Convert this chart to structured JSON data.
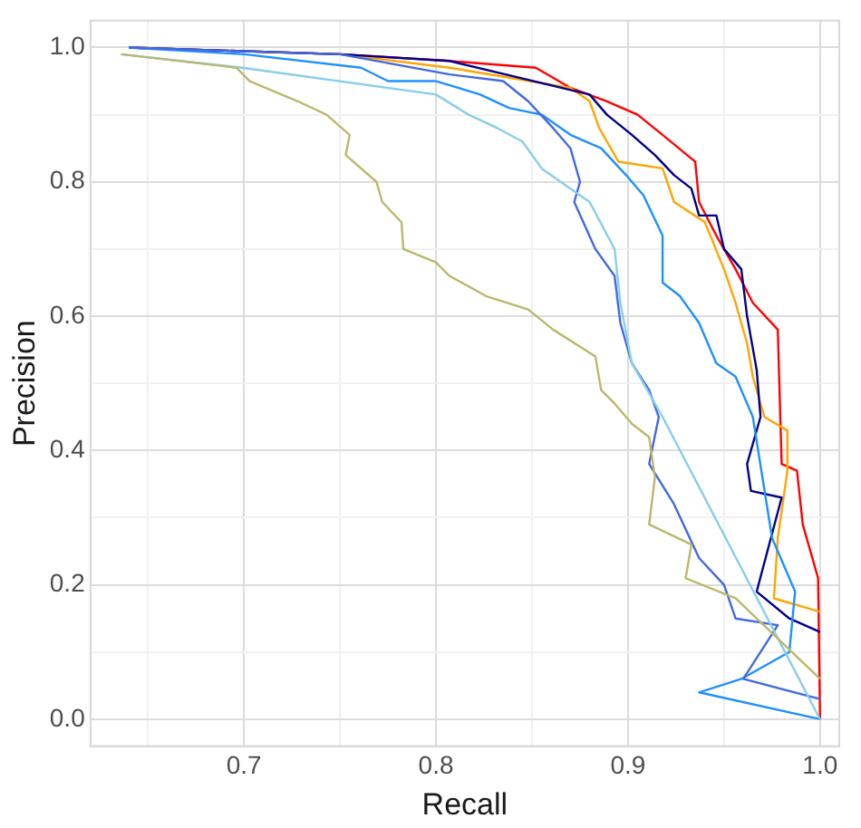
{
  "chart_data": {
    "type": "line",
    "xlabel": "Recall",
    "ylabel": "Precision",
    "xlim": [
      0.62,
      1.01
    ],
    "ylim": [
      -0.04,
      1.04
    ],
    "xticks": [
      {
        "value": 0.65,
        "label": null
      },
      0.7,
      {
        "value": 0.75,
        "label": null
      },
      0.8,
      {
        "value": 0.85,
        "label": null
      },
      0.9,
      {
        "value": 0.95,
        "label": null
      },
      {
        "value": 1,
        "label": "1.0"
      }
    ],
    "yticks": [
      {
        "value": 0,
        "label": "0.0"
      },
      {
        "value": 0.1,
        "label": null
      },
      0.2,
      {
        "value": 0.3,
        "label": null
      },
      0.4,
      {
        "value": 0.5,
        "label": null
      },
      0.6,
      {
        "value": 0.7,
        "label": null
      },
      0.8,
      {
        "value": 0.9,
        "label": null
      },
      {
        "value": 1,
        "label": "1.0"
      }
    ],
    "grid": true,
    "legend": false,
    "marker": "none",
    "line_style": "solid",
    "series": [
      {
        "color": "#bdb76b",
        "x": [
          0.636,
          0.696,
          0.703,
          0.728,
          0.743,
          0.755,
          0.753,
          0.769,
          0.772,
          0.782,
          0.783,
          0.8,
          0.807,
          0.826,
          0.848,
          0.861,
          0.883,
          0.886,
          0.893,
          0.902,
          0.911,
          0.914,
          0.911,
          0.933,
          0.93,
          0.956,
          0.978,
          1.0
        ],
        "values": [
          0.99,
          0.97,
          0.95,
          0.92,
          0.9,
          0.87,
          0.84,
          0.8,
          0.77,
          0.74,
          0.7,
          0.68,
          0.66,
          0.63,
          0.61,
          0.58,
          0.54,
          0.49,
          0.47,
          0.44,
          0.42,
          0.36,
          0.29,
          0.26,
          0.21,
          0.18,
          0.12,
          0.06
        ]
      },
      {
        "color": "#87ceeb",
        "x": [
          0.636,
          0.699,
          0.8,
          0.817,
          0.832,
          0.845,
          0.855,
          0.87,
          0.88,
          0.893,
          0.896,
          0.902,
          0.918,
          1.0
        ],
        "values": [
          0.99,
          0.97,
          0.93,
          0.9,
          0.88,
          0.86,
          0.82,
          0.79,
          0.77,
          0.7,
          0.62,
          0.53,
          0.45,
          0.0
        ]
      },
      {
        "color": "#4169e1",
        "x": [
          0.64,
          0.75,
          0.807,
          0.835,
          0.848,
          0.861,
          0.87,
          0.875,
          0.872,
          0.883,
          0.893,
          0.896,
          0.902,
          0.911,
          0.916,
          0.911,
          0.924,
          0.937,
          0.95,
          0.956,
          0.978,
          0.96,
          1.0
        ],
        "values": [
          1.0,
          0.99,
          0.96,
          0.95,
          0.92,
          0.88,
          0.85,
          0.8,
          0.77,
          0.7,
          0.66,
          0.59,
          0.53,
          0.49,
          0.45,
          0.38,
          0.32,
          0.24,
          0.2,
          0.15,
          0.14,
          0.06,
          0.03
        ]
      },
      {
        "color": "#1e90ff",
        "x": [
          0.64,
          0.7,
          0.761,
          0.775,
          0.8,
          0.823,
          0.838,
          0.855,
          0.87,
          0.886,
          0.899,
          0.908,
          0.918,
          0.918,
          0.927,
          0.937,
          0.946,
          0.956,
          0.965,
          0.975,
          0.987,
          0.984,
          0.959,
          0.937,
          1.0
        ],
        "values": [
          1.0,
          0.99,
          0.97,
          0.95,
          0.95,
          0.93,
          0.91,
          0.9,
          0.87,
          0.85,
          0.81,
          0.78,
          0.72,
          0.65,
          0.63,
          0.59,
          0.53,
          0.51,
          0.45,
          0.27,
          0.19,
          0.1,
          0.06,
          0.04,
          0.0
        ]
      },
      {
        "color": "#00008b",
        "x": [
          0.64,
          0.75,
          0.807,
          0.88,
          0.889,
          0.902,
          0.914,
          0.924,
          0.933,
          0.937,
          0.946,
          0.95,
          0.959,
          0.962,
          0.967,
          0.969,
          0.962,
          0.964,
          0.98,
          0.967,
          0.984,
          1.0
        ],
        "values": [
          1.0,
          0.99,
          0.98,
          0.93,
          0.9,
          0.87,
          0.84,
          0.81,
          0.79,
          0.75,
          0.75,
          0.7,
          0.67,
          0.6,
          0.52,
          0.45,
          0.38,
          0.34,
          0.33,
          0.19,
          0.15,
          0.13
        ]
      },
      {
        "color": "#ffa500",
        "x": [
          0.64,
          0.75,
          0.807,
          0.87,
          0.88,
          0.885,
          0.895,
          0.918,
          0.924,
          0.94,
          0.95,
          0.956,
          0.962,
          0.965,
          0.971,
          0.983,
          0.983,
          0.978,
          0.976,
          1.0
        ],
        "values": [
          1.0,
          0.99,
          0.97,
          0.94,
          0.92,
          0.88,
          0.83,
          0.82,
          0.77,
          0.74,
          0.67,
          0.62,
          0.56,
          0.51,
          0.45,
          0.43,
          0.37,
          0.27,
          0.18,
          0.16
        ]
      },
      {
        "color": "#ff0000",
        "x": [
          0.64,
          0.75,
          0.807,
          0.852,
          0.87,
          0.889,
          0.905,
          0.918,
          0.935,
          0.937,
          0.946,
          0.956,
          0.965,
          0.978,
          0.98,
          0.988,
          0.991,
          0.999,
          1.0
        ],
        "values": [
          1.0,
          0.99,
          0.98,
          0.97,
          0.94,
          0.92,
          0.9,
          0.87,
          0.83,
          0.77,
          0.72,
          0.67,
          0.62,
          0.58,
          0.38,
          0.37,
          0.29,
          0.21,
          0.0
        ]
      }
    ]
  }
}
